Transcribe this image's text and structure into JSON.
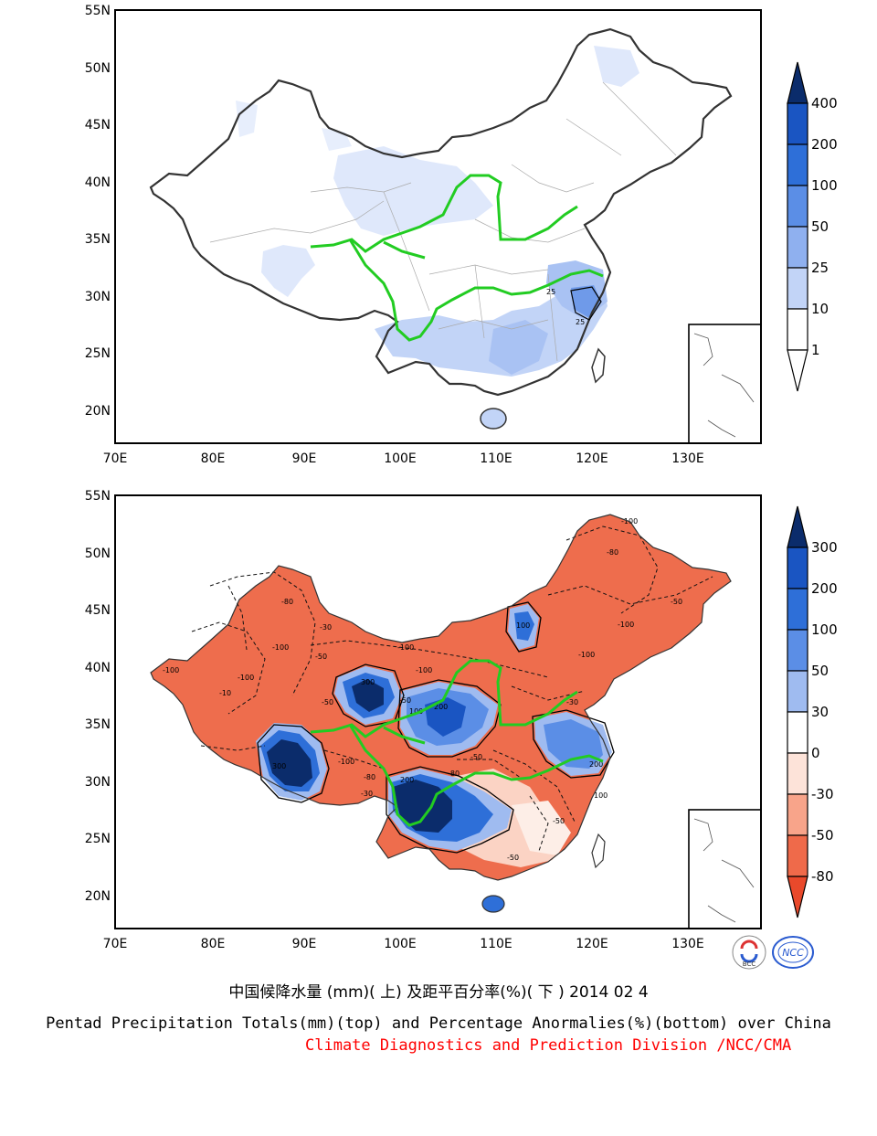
{
  "top_map": {
    "lat_ticks": [
      "55N",
      "50N",
      "45N",
      "40N",
      "35N",
      "30N",
      "25N",
      "20N"
    ],
    "lon_ticks": [
      "70E",
      "80E",
      "90E",
      "100E",
      "110E",
      "120E",
      "130E"
    ],
    "contour_labels": [
      "25",
      "25"
    ],
    "colorbar": {
      "labels": [
        "400",
        "200",
        "100",
        "50",
        "25",
        "10",
        "1"
      ],
      "colors": [
        "#0b2c6b",
        "#1a55c2",
        "#2e6fd8",
        "#5b8ee6",
        "#8fb0ef",
        "#c2d4f7",
        "#ffffff"
      ]
    }
  },
  "bottom_map": {
    "lat_ticks": [
      "55N",
      "50N",
      "45N",
      "40N",
      "35N",
      "30N",
      "25N",
      "20N"
    ],
    "lon_ticks": [
      "70E",
      "80E",
      "90E",
      "100E",
      "110E",
      "120E",
      "130E"
    ],
    "contour_labels": [
      "-100",
      "-80",
      "-100",
      "-50",
      "-100",
      "-80",
      "-30",
      "-50",
      "-100",
      "-100",
      "-100",
      "-10",
      "-100",
      "300",
      "200",
      "100",
      "100",
      "-50",
      "-80",
      "-100",
      "100",
      "200",
      "-50",
      "-30",
      "-50",
      "300",
      "200",
      "-30",
      "-50",
      "-80",
      "-100",
      "-50"
    ],
    "colorbar": {
      "labels": [
        "300",
        "200",
        "100",
        "50",
        "30",
        "0",
        "-30",
        "-50",
        "-80"
      ],
      "colors": [
        "#0b2c6b",
        "#1a55c2",
        "#2e6fd8",
        "#5b8ee6",
        "#9fbbf0",
        "#ffffff",
        "#fde3d9",
        "#f8a48a",
        "#ef6a4a",
        "#e9492b"
      ]
    }
  },
  "logos": {
    "left": "BCC",
    "right": "NCC"
  },
  "title_cn": "中国候降水量 (mm)( 上) 及距平百分率(%)( 下 ) 2014 02 4",
  "title_en": "Pentad Precipitation Totals(mm)(top) and Percentage Anormalies(%)(bottom) over China",
  "credit": "Climate Diagnostics and Prediction Division /NCC/CMA",
  "colors": {
    "credit": "#ff0000",
    "river": "#22cc22"
  }
}
